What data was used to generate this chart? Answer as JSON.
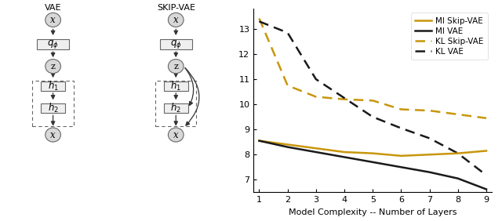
{
  "x": [
    1,
    2,
    3,
    4,
    5,
    6,
    7,
    8,
    9
  ],
  "mi_skip_vae": [
    8.55,
    8.4,
    8.25,
    8.1,
    8.05,
    7.95,
    8.0,
    8.05,
    8.15
  ],
  "mi_vae": [
    8.55,
    8.3,
    8.1,
    7.9,
    7.7,
    7.5,
    7.3,
    7.05,
    6.62
  ],
  "kl_skip_vae": [
    13.42,
    10.75,
    10.3,
    10.2,
    10.15,
    9.8,
    9.75,
    9.6,
    9.45
  ],
  "kl_vae": [
    13.3,
    12.85,
    11.0,
    10.25,
    9.5,
    9.05,
    8.65,
    8.05,
    7.18
  ],
  "gold_color": "#C8960C",
  "black_color": "#1a1a1a",
  "xlabel": "Model Complexity -- Number of Layers",
  "yticks": [
    7,
    8,
    9,
    10,
    11,
    12,
    13
  ],
  "ylim": [
    6.5,
    13.8
  ],
  "xlim": [
    0.8,
    9.2
  ],
  "xticks": [
    1,
    2,
    3,
    4,
    5,
    6,
    7,
    8,
    9
  ],
  "legend_labels": [
    "MI Skip-VAE",
    "MI VAE",
    "KL Skip-VAE",
    "KL VAE"
  ],
  "bg_color": "#f2f2f2"
}
